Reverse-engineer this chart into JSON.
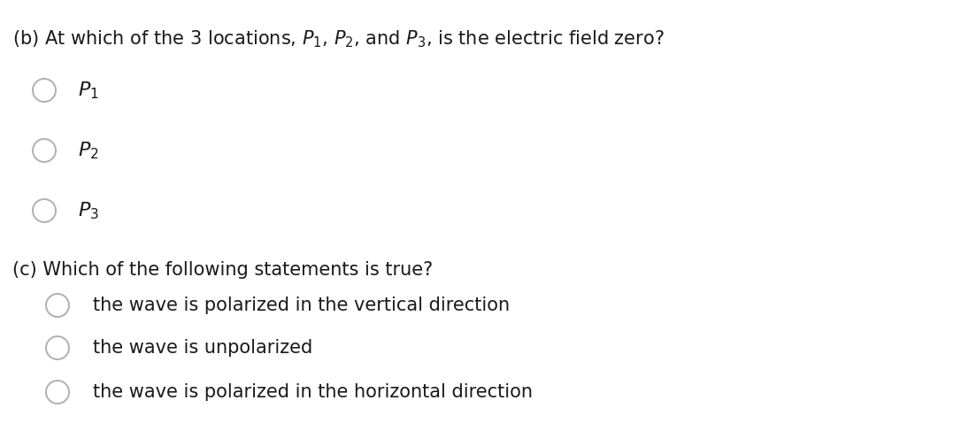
{
  "background_color": "#ffffff",
  "text_color": "#1a1a1a",
  "circle_color": "#b0b0b0",
  "title_b": "(b) At which of the 3 locations, $P_1$, $P_2$, and $P_3$, is the electric field zero?",
  "options_b": [
    "$P_1$",
    "$P_2$",
    "$P_3$"
  ],
  "title_c": "(c) Which of the following statements is true?",
  "options_c": [
    "the wave is polarized in the vertical direction",
    "the wave is unpolarized",
    "the wave is polarized in the horizontal direction"
  ],
  "font_size_title": 15.0,
  "font_size_option_b": 16.0,
  "font_size_option_c": 15.0,
  "fig_width": 10.86,
  "fig_height": 4.96,
  "dpi": 100
}
